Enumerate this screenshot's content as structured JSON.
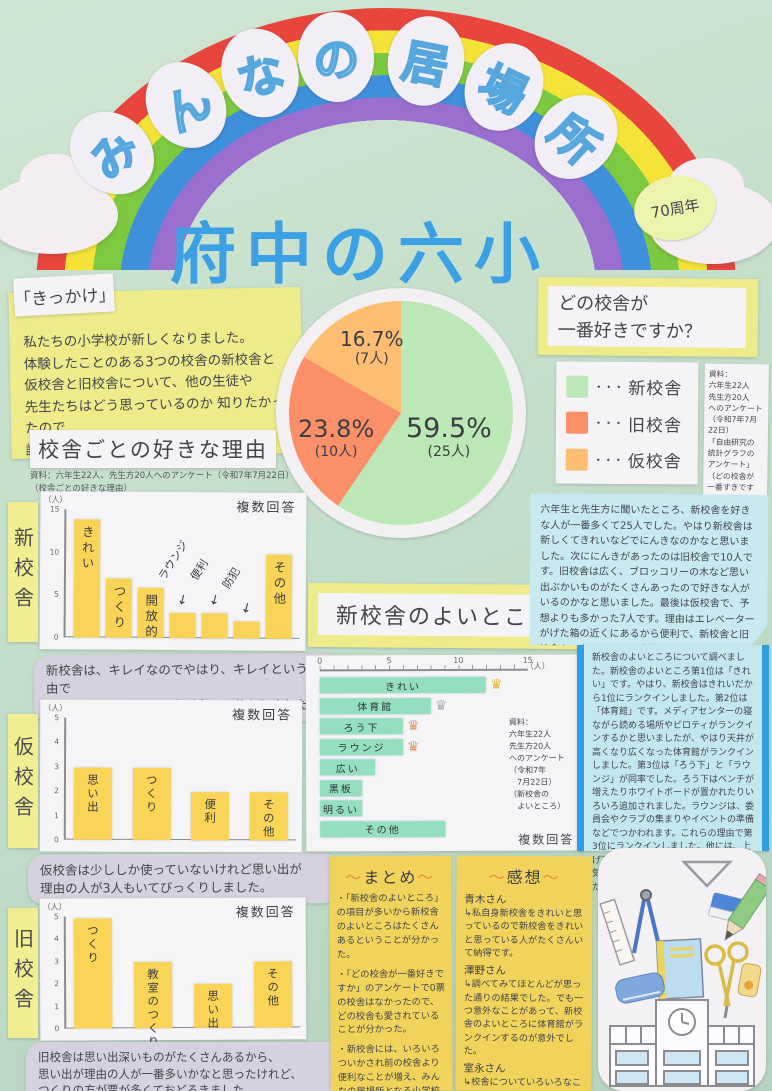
{
  "header": {
    "arc_letters": [
      "み",
      "ん",
      "な",
      "の",
      "居",
      "場",
      "所"
    ],
    "title": "府中の六小",
    "badge": "70周年"
  },
  "kikkake": {
    "label": "「きっかけ」",
    "text": "私たちの小学校が新しくなりました。\n体験したことのある3つの校舎の新校舎と\n仮校舎と旧校舎について、他の生徒や\n先生たちはどう思っているのか 知りたかったので\n調べることにしました。"
  },
  "reasons_section": {
    "heading": "校舎ごとの好きな理由",
    "source": "資料：六年生22人、先生方20人へのアンケート（令和7年7月22日）\n（校舎ごとの好きな理由）",
    "comment_shin": "新校舎は、キレイなのでやはり、キレイという理由で\n新校舎のことが好きな人が多いと分かりました。",
    "comment_kari": "仮校舎は少ししか使っていないけれど思い出が\n理由の人が3人もいてびっくりしました。",
    "comment_kyu": "旧校舎は思い出深いものがたくさんあるから、\n思い出が理由の人が一番多いかなと思ったけれど、\nつくりの方が票が多くておどろきました。"
  },
  "question_card": {
    "line1": "どの校舎が",
    "line2": "一番好きですか？"
  },
  "legend": {
    "dots": "・・・"
  },
  "source_note_right": "資料：\n六年生22人\n先生方20人\nへのアンケート\n（令和7年7月22日）\n「自由研究の\n統計グラフの\nアンケート」\n（どの校舎が\n一番すきですか）",
  "good_points_section": {
    "heading": "新校舎のよいところ",
    "source": "資料：\n六年生22人\n先生方20人\nへのアンケート\n（令和7年\n　7月22日）\n（新校舎の\n　よいところ）"
  },
  "right_paragraphs": {
    "survey_result": "六年生と先生方に聞いたところ、新校舎を好きな人が一番多くて25人でした。やはり新校舎は新しくてきれいなどでにんきなのかなと思いました。次ににんきがあったのは旧校舎で10人です。旧校舎は広く、ブロッコリーの木など思い出ぶかいものがたくさんあったので好きな人がいるのかなと思いました。最後は仮校舎で、予想よりも多かった7人です。理由はエレベーターがげた箱の近くにあるから便利で、新校舎と旧校舎をつないでくれた存在だからです。",
    "good_points_result": "新校舎のよいところについて調べました。新校舎のよいところ第1位は「きれい」です。やはり、新校舎はきれいだから1位にランクインしました。第2位は「体育館」です。メディアセンターの寝ながら読める場所やピロティがランクインするかと思いましたが、やはり天井が高くなり広くなった体育館がランクインしました。第3位は「ろう下」と「ラウンジ」が同率でした。ろう下はベンチが増えたりホワイトボードが置かれたりいろいろ追加されました。ラウンジは、委員会やクラブの集まりやイベントの準備などでつかわれます。これらの理由で第3位にランクインしました。他には、上げ下げできる黒板や入っただけで明るい気持ちになれるなどがランクインしました。"
  },
  "matome": {
    "title_pre": "〜",
    "title": "まとめ",
    "title_post": "〜",
    "bullets": [
      "・「新校舎のよいところ」の項目が多いから新校舎のよいところはたくさんあるということが分かった。",
      "・「どの校舎が一番好きですか」のアンケートで0票の校舎はなかったので、どの校舎も愛されていることが分かった。",
      "・新校舎には、いろいろついかされ前の校舎より便利なことが増え、みんなの居場所となる小学校にうまれかわった。"
    ]
  },
  "kansou": {
    "title_pre": "〜",
    "title": "感想",
    "title_post": "〜",
    "entries": [
      {
        "name": "青木さん",
        "text": "↳私自身新校舎をきれいと思っているので新校舎をきれいと思っている人がたくさんいて納得です。"
      },
      {
        "name": "澤野さん",
        "text": "↳調べてみてほとんどが思った通りの結果でした。でも一つ意外なことがあって、新校舎のよいところに体育館がランクインするのが意外でした。"
      },
      {
        "name": "室永さん",
        "text": "↳校舎についていろいろなことが知れたし、校舎のことがもっと好きになりました。"
      }
    ]
  },
  "chart_data": [
    {
      "id": "favorite-building-pie",
      "type": "pie",
      "title": "どの校舎が一番好きですか？",
      "unit": "人",
      "slices": [
        {
          "label": "新校舎",
          "percent": 59.5,
          "count": 25,
          "color": "#bce7b6"
        },
        {
          "label": "旧校舎",
          "percent": 23.8,
          "count": 10,
          "color": "#fb8f68"
        },
        {
          "label": "仮校舎",
          "percent": 16.7,
          "count": 7,
          "color": "#fdbd72"
        }
      ]
    },
    {
      "id": "shin-kousha-reasons",
      "type": "bar",
      "building": "新校舎",
      "unit_label": "（人）",
      "note": "複数回答",
      "bar_color": "#f9d456",
      "ylim": [
        0,
        15
      ],
      "yticks": [
        0,
        5,
        10,
        15
      ],
      "categories": [
        "きれい",
        "つくり",
        "開放的",
        "ラウンジ",
        "便利",
        "防犯",
        "その他"
      ],
      "values": [
        14,
        7,
        6,
        3,
        3,
        2,
        10
      ],
      "outside_labels": [
        "ラウンジ",
        "便利",
        "防犯"
      ]
    },
    {
      "id": "kari-kousha-reasons",
      "type": "bar",
      "building": "仮校舎",
      "unit_label": "（人）",
      "note": "複数回答",
      "bar_color": "#f9d456",
      "ylim": [
        0,
        5
      ],
      "yticks": [
        0,
        1,
        2,
        3,
        4,
        5
      ],
      "categories": [
        "思い出",
        "つくり",
        "便利",
        "その他"
      ],
      "values": [
        3,
        3,
        2,
        2
      ],
      "outside_labels": []
    },
    {
      "id": "kyu-kousha-reasons",
      "type": "bar",
      "building": "旧校舎",
      "unit_label": "（人）",
      "note": "複数回答",
      "bar_color": "#f9d456",
      "ylim": [
        0,
        5
      ],
      "yticks": [
        0,
        1,
        2,
        3,
        4,
        5
      ],
      "categories": [
        "つくり",
        "教室のつくり",
        "思い出",
        "その他"
      ],
      "values": [
        5,
        3,
        2,
        3
      ],
      "outside_labels": []
    },
    {
      "id": "shin-kousha-good-points",
      "type": "bar-horizontal",
      "title": "新校舎のよいところ",
      "unit_label": "（人）",
      "note": "複数回答",
      "bar_color": "#93dfc0",
      "xlim": [
        0,
        15
      ],
      "xticks": [
        0,
        5,
        10,
        15
      ],
      "categories": [
        "きれい",
        "体育館",
        "ろう下",
        "ラウンジ",
        "広い",
        "黒板",
        "明るい",
        "その他"
      ],
      "values": [
        12,
        8,
        6,
        6,
        4,
        3,
        3,
        9
      ],
      "crown_ranks": [
        1,
        2,
        3,
        3,
        0,
        0,
        0,
        0
      ]
    }
  ]
}
